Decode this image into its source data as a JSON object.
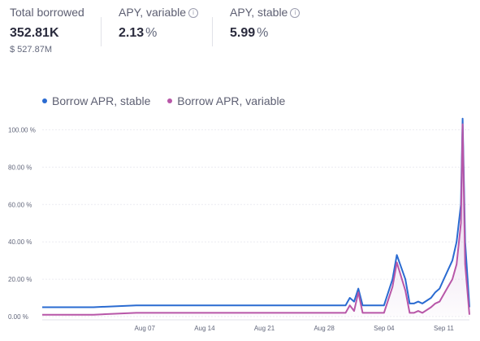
{
  "stats": {
    "total_borrowed": {
      "label": "Total borrowed",
      "value": "352.81K",
      "usd": "$ 527.87M"
    },
    "apy_variable": {
      "label": "APY, variable",
      "value": "2.13",
      "unit": "%"
    },
    "apy_stable": {
      "label": "APY, stable",
      "value": "5.99",
      "unit": "%"
    }
  },
  "info_icon": "info-circle-icon",
  "colors": {
    "stable": "#2a6bd1",
    "variable": "#b857a8",
    "variable_fill": "#d8bde0"
  },
  "chart_data": {
    "type": "line",
    "legend": [
      "Borrow APR, stable",
      "Borrow APR, variable"
    ],
    "y_ticks": [
      "0.00 %",
      "20.00 %",
      "40.00 %",
      "60.00 %",
      "80.00 %",
      "100.00 %"
    ],
    "x_ticks": [
      "Aug 07",
      "Aug 14",
      "Aug 21",
      "Aug 28",
      "Sep 04",
      "Sep 11"
    ],
    "ylim": [
      0,
      105
    ],
    "x_range_days": [
      -6,
      44
    ],
    "x_tick_days": [
      6,
      13,
      20,
      27,
      34,
      41
    ],
    "series": [
      {
        "name": "Borrow APR, stable",
        "x": [
          -6,
          0,
          5,
          10,
          15,
          20,
          25,
          27.5,
          29.5,
          30,
          30.5,
          31,
          31.5,
          32,
          32.5,
          33,
          33.5,
          34,
          35,
          35.5,
          36.5,
          37,
          37.5,
          38,
          38.5,
          39.5,
          40,
          40.5,
          41,
          41.5,
          42,
          42.5,
          43,
          43.2,
          43.5,
          44
        ],
        "values": [
          5,
          5,
          6,
          6,
          6,
          6,
          6,
          6,
          6,
          10,
          8,
          15,
          6,
          6,
          6,
          6,
          6,
          6,
          20,
          33,
          20,
          7,
          7,
          8,
          7,
          10,
          13,
          15,
          20,
          25,
          30,
          40,
          60,
          106,
          40,
          5
        ]
      },
      {
        "name": "Borrow APR, variable",
        "x": [
          -6,
          0,
          5,
          10,
          15,
          20,
          25,
          27.5,
          29.5,
          30,
          30.5,
          31,
          31.5,
          32,
          32.5,
          33,
          33.5,
          34,
          35,
          35.5,
          36.5,
          37,
          37.5,
          38,
          38.5,
          39.5,
          40,
          40.5,
          41,
          41.5,
          42,
          42.5,
          43,
          43.2,
          43.5,
          44
        ],
        "values": [
          1,
          1,
          2,
          2,
          2,
          2,
          2,
          2,
          2,
          6,
          3,
          13,
          2,
          2,
          2,
          2,
          2,
          2,
          16,
          29,
          14,
          2,
          2,
          3,
          2,
          5,
          7,
          8,
          12,
          16,
          20,
          28,
          50,
          103,
          28,
          1
        ]
      }
    ]
  }
}
